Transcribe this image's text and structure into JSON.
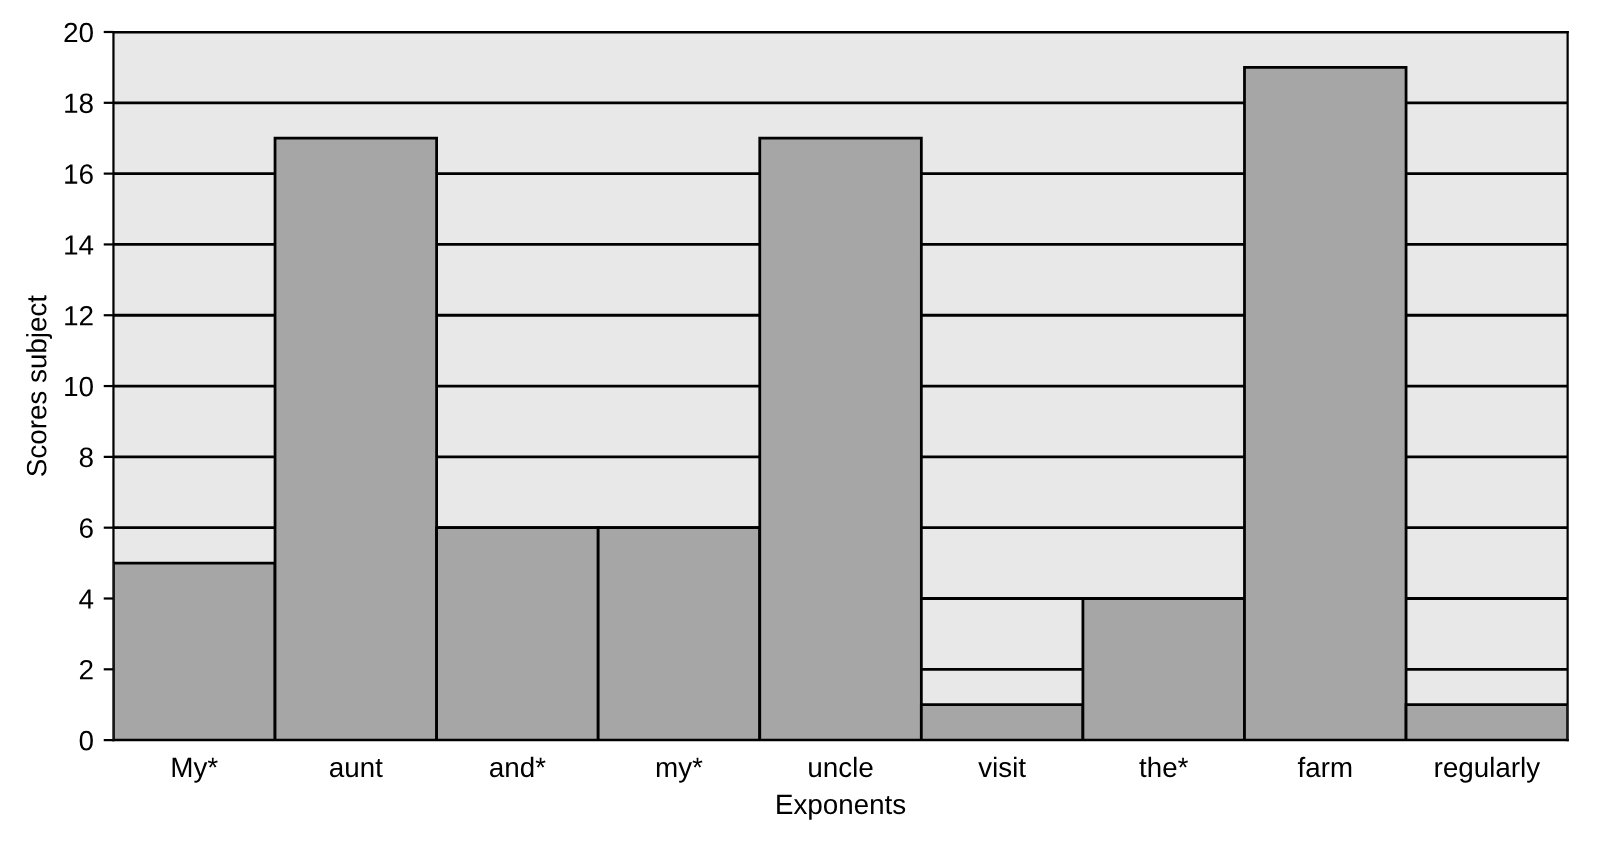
{
  "chart_data": {
    "type": "bar",
    "xlabel": "Exponents",
    "ylabel": "Scores subject",
    "categories": [
      "My*",
      "aunt",
      "and*",
      "my*",
      "uncle",
      "visit",
      "the*",
      "farm",
      "regularly"
    ],
    "values": [
      5,
      17,
      6,
      6,
      17,
      1,
      4,
      19,
      1
    ],
    "color": "#a6a6a6",
    "ylim": [
      0,
      20
    ],
    "yticks": [
      0,
      2,
      4,
      6,
      8,
      10,
      12,
      14,
      16,
      18,
      20
    ],
    "grid": "y"
  }
}
